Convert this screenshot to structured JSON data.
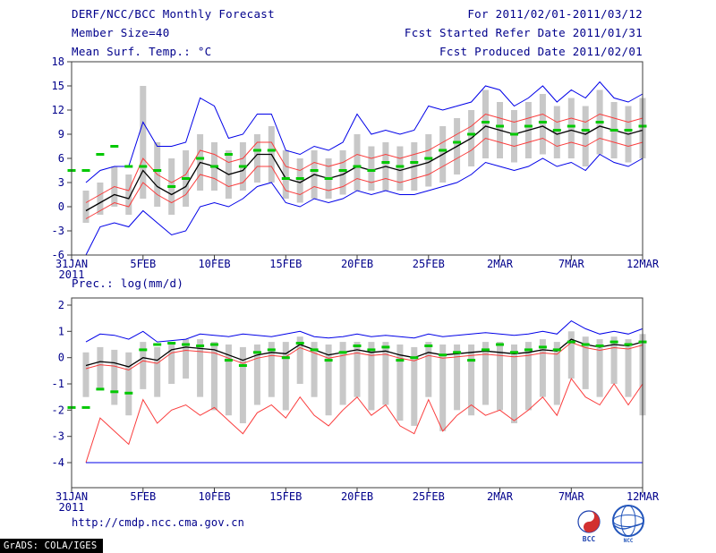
{
  "header": {
    "title": "DERF/NCC/BCC Monthly Forecast",
    "member_size": "Member Size=40",
    "for_line": "For 2011/02/01-2011/03/12",
    "refer_line": "Fcst Started Refer Date 2011/01/31",
    "produced_line": "Fcst Produced Date 2011/02/01"
  },
  "footer": {
    "url": "http://cmdp.ncc.cma.gov.cn",
    "grads_credit": "GrADS: COLA/IGES",
    "logos": [
      {
        "label": "BCC"
      },
      {
        "label": "NCC"
      }
    ]
  },
  "colors": {
    "text": "#00008b",
    "frame": "#3c3c3c",
    "bar": "#c8c8c8",
    "obs": "#00c800",
    "blue": "#0000e8",
    "red": "#fa3c3c",
    "black": "#000000"
  },
  "chart_data": [
    {
      "type": "line",
      "title": "Mean Surf. Temp.: °C",
      "ylabel": "",
      "ylim": [
        -6,
        18
      ],
      "ytick_step": 3,
      "grid": false,
      "legend": "none",
      "x_tick_days": [
        0,
        5,
        10,
        15,
        20,
        25,
        30,
        35,
        40
      ],
      "x_tick_labels": [
        "31JAN",
        "5FEB",
        "10FEB",
        "15FEB",
        "20FEB",
        "25FEB",
        "2MAR",
        "7MAR",
        "12MAR"
      ],
      "x_sub_label": "2011",
      "n_days": 41,
      "series": [
        {
          "name": "ensemble-max",
          "color_key": "blue",
          "width": 1,
          "values": [
            null,
            3,
            4.5,
            5,
            5,
            10.5,
            7.5,
            7.5,
            8,
            13.5,
            12.5,
            8.5,
            9,
            11.5,
            11.5,
            7,
            6.5,
            7.5,
            7,
            8,
            11.5,
            9,
            9.5,
            9,
            9.5,
            12.5,
            12,
            12.5,
            13,
            15,
            14.5,
            12.5,
            13.5,
            15,
            13,
            14.5,
            13.5,
            15.5,
            13.5,
            13,
            14
          ]
        },
        {
          "name": "upper-quartile",
          "color_key": "red",
          "width": 1,
          "values": [
            null,
            0.5,
            1.5,
            2.5,
            2,
            6,
            4,
            3,
            4,
            7,
            6.5,
            5.5,
            6,
            8,
            8,
            5,
            4.5,
            5.5,
            5,
            5.5,
            6.5,
            6,
            6.5,
            6,
            6.5,
            7,
            8,
            9,
            10,
            11.5,
            11,
            10.5,
            11,
            11.5,
            10.5,
            11,
            10.5,
            11.5,
            11,
            10.5,
            11
          ]
        },
        {
          "name": "ensemble-mean",
          "color_key": "black",
          "width": 1.3,
          "values": [
            null,
            -0.5,
            0.5,
            1.5,
            1,
            4.5,
            2.5,
            1.5,
            2.5,
            5.5,
            5,
            4,
            4.5,
            6.5,
            6.5,
            3.5,
            3,
            4,
            3.5,
            4,
            5,
            4.5,
            5,
            4.5,
            5,
            5.5,
            6.5,
            7.5,
            8.5,
            10,
            9.5,
            9,
            9.5,
            10,
            9,
            9.5,
            9,
            10,
            9.5,
            9,
            9.5
          ]
        },
        {
          "name": "lower-quartile",
          "color_key": "red",
          "width": 1,
          "values": [
            null,
            -1.5,
            -0.5,
            0.5,
            0,
            3,
            1.5,
            0.5,
            1.5,
            4,
            3.5,
            2.5,
            3,
            5,
            5,
            2,
            1.5,
            2.5,
            2,
            2.5,
            3.5,
            3,
            3.5,
            3,
            3.5,
            4,
            5,
            6,
            7,
            8.5,
            8,
            7.5,
            8,
            8.5,
            7.5,
            8,
            7.5,
            8.5,
            8,
            7.5,
            8
          ]
        },
        {
          "name": "ensemble-min",
          "color_key": "blue",
          "width": 1,
          "values": [
            null,
            -6,
            -2.5,
            -2,
            -2.5,
            -0.5,
            -2,
            -3.5,
            -3,
            0,
            0.5,
            0,
            1,
            2.5,
            3,
            0.5,
            0,
            1,
            0.5,
            1,
            2,
            1.5,
            2,
            1.5,
            1.5,
            2,
            2.5,
            3,
            4,
            5.5,
            5,
            4.5,
            5,
            6,
            5,
            5.5,
            4.5,
            6.5,
            5.5,
            5,
            6
          ]
        }
      ],
      "obs": {
        "name": "observation",
        "values": [
          4.5,
          4.5,
          6.5,
          7.5,
          5,
          5,
          4.5,
          2.5,
          3.5,
          6,
          5,
          6.5,
          5,
          7,
          7,
          3.5,
          3.5,
          4.5,
          3.5,
          4.5,
          5,
          4.5,
          5.5,
          5,
          5.5,
          6,
          7,
          8,
          9,
          10.5,
          10,
          9,
          10,
          10.5,
          9.5,
          10,
          9.5,
          10.5,
          9.5,
          9.5,
          10
        ]
      },
      "bars": {
        "name": "ensemble-spread",
        "ranges": [
          null,
          [
            -2,
            2
          ],
          [
            -1,
            3
          ],
          [
            0,
            5
          ],
          [
            -1,
            4
          ],
          [
            1,
            15
          ],
          [
            0,
            8
          ],
          [
            -1,
            6
          ],
          [
            0,
            7
          ],
          [
            2,
            9
          ],
          [
            2,
            8
          ],
          [
            1,
            7
          ],
          [
            2,
            8
          ],
          [
            3,
            9
          ],
          [
            3,
            10
          ],
          [
            1,
            7
          ],
          [
            0.5,
            6
          ],
          [
            1,
            7
          ],
          [
            1,
            6
          ],
          [
            1.5,
            7
          ],
          [
            2,
            9
          ],
          [
            2,
            7.5
          ],
          [
            2,
            8
          ],
          [
            2,
            7.5
          ],
          [
            2,
            8
          ],
          [
            2.5,
            9
          ],
          [
            3,
            10
          ],
          [
            4,
            11
          ],
          [
            5,
            12
          ],
          [
            6,
            14.5
          ],
          [
            6,
            13
          ],
          [
            5.5,
            12
          ],
          [
            6,
            13
          ],
          [
            6.5,
            14
          ],
          [
            6,
            12.5
          ],
          [
            6,
            13.5
          ],
          [
            5,
            12.5
          ],
          [
            6.5,
            14.5
          ],
          [
            6,
            13
          ],
          [
            5.5,
            12.5
          ],
          [
            6,
            13.5
          ]
        ]
      }
    },
    {
      "type": "line",
      "title": "Prec.: log(mm/d)",
      "ylabel": "",
      "ylim": [
        -4,
        2
      ],
      "ytick_step": 1,
      "grid": false,
      "legend": "none",
      "x_tick_days": [
        0,
        5,
        10,
        15,
        20,
        25,
        30,
        35,
        40
      ],
      "x_tick_labels": [
        "31JAN",
        "5FEB",
        "10FEB",
        "15FEB",
        "20FEB",
        "25FEB",
        "2MAR",
        "7MAR",
        "12MAR"
      ],
      "x_sub_label": "2011",
      "n_days": 41,
      "series": [
        {
          "name": "ensemble-max",
          "color_key": "blue",
          "width": 1,
          "values": [
            null,
            0.6,
            0.9,
            0.85,
            0.7,
            1,
            0.6,
            0.65,
            0.7,
            0.9,
            0.85,
            0.8,
            0.9,
            0.85,
            0.8,
            0.9,
            1,
            0.8,
            0.75,
            0.8,
            0.9,
            0.8,
            0.85,
            0.8,
            0.75,
            0.9,
            0.8,
            0.85,
            0.9,
            0.95,
            0.9,
            0.85,
            0.9,
            1,
            0.9,
            1.4,
            1.1,
            0.9,
            1,
            0.9,
            1.1
          ]
        },
        {
          "name": "ensemble-mean",
          "color_key": "black",
          "width": 1.3,
          "values": [
            null,
            -0.3,
            -0.15,
            -0.2,
            -0.35,
            0,
            -0.1,
            0.3,
            0.4,
            0.35,
            0.3,
            0.1,
            -0.1,
            0.1,
            0.2,
            0.15,
            0.5,
            0.3,
            0.1,
            0.2,
            0.3,
            0.2,
            0.25,
            0.1,
            0,
            0.2,
            0.1,
            0.15,
            0.2,
            0.25,
            0.2,
            0.15,
            0.2,
            0.3,
            0.25,
            0.7,
            0.5,
            0.4,
            0.5,
            0.45,
            0.6
          ]
        },
        {
          "name": "upper-quartile",
          "color_key": "red",
          "width": 1,
          "values": [
            null,
            -0.42,
            -0.27,
            -0.32,
            -0.47,
            -0.12,
            -0.22,
            0.18,
            0.28,
            0.23,
            0.18,
            -0.02,
            -0.22,
            -0.02,
            0.08,
            0.03,
            0.38,
            0.18,
            -0.02,
            0.08,
            0.18,
            0.08,
            0.13,
            -0.02,
            -0.12,
            0.08,
            -0.02,
            0.03,
            0.08,
            0.13,
            0.08,
            0.03,
            0.08,
            0.18,
            0.13,
            0.58,
            0.38,
            0.28,
            0.38,
            0.33,
            0.48
          ]
        },
        {
          "name": "lower-quartile",
          "color_key": "red",
          "width": 1,
          "values": [
            null,
            -4,
            -2.3,
            -2.8,
            -3.3,
            -1.6,
            -2.5,
            -2,
            -1.8,
            -2.2,
            -1.9,
            -2.4,
            -2.9,
            -2.1,
            -1.8,
            -2.3,
            -1.5,
            -2.2,
            -2.6,
            -2,
            -1.5,
            -2.2,
            -1.8,
            -2.6,
            -2.9,
            -1.6,
            -2.8,
            -2.2,
            -1.8,
            -2.2,
            -2,
            -2.4,
            -2,
            -1.5,
            -2.2,
            -0.8,
            -1.5,
            -1.8,
            -1,
            -1.8,
            -1
          ]
        },
        {
          "name": "ensemble-min",
          "color_key": "blue",
          "width": 1,
          "values": [
            null,
            -4,
            -4,
            -4,
            -4,
            -4,
            -4,
            -4,
            -4,
            -4,
            -4,
            -4,
            -4,
            -4,
            -4,
            -4,
            -4,
            -4,
            -4,
            -4,
            -4,
            -4,
            -4,
            -4,
            -4,
            -4,
            -4,
            -4,
            -4,
            -4,
            -4,
            -4,
            -4,
            -4,
            -4,
            -4,
            -4,
            -4,
            -4,
            -4,
            -4
          ]
        }
      ],
      "obs": {
        "name": "observation",
        "values": [
          -1.9,
          -1.9,
          -1.2,
          -1.3,
          -1.35,
          0.3,
          0.5,
          0.55,
          0.5,
          0.45,
          0.5,
          -0.1,
          -0.3,
          0.2,
          0.3,
          0,
          0.55,
          0.3,
          -0.1,
          0.2,
          0.45,
          0.3,
          0.4,
          -0.1,
          0,
          0.45,
          0.1,
          0.2,
          -0.1,
          0.3,
          0.5,
          0.2,
          0.3,
          0.4,
          0.3,
          0.6,
          0.5,
          0.45,
          0.6,
          0.5,
          0.6
        ]
      },
      "bars": {
        "name": "ensemble-spread",
        "ranges": [
          null,
          [
            -1.5,
            0.2
          ],
          [
            -1.2,
            0.4
          ],
          [
            -1.8,
            0.3
          ],
          [
            -2.2,
            0.2
          ],
          [
            -1.2,
            0.6
          ],
          [
            -1.5,
            0.4
          ],
          [
            -1,
            0.6
          ],
          [
            -0.8,
            0.7
          ],
          [
            -1.5,
            0.7
          ],
          [
            -2,
            0.6
          ],
          [
            -2.2,
            0.5
          ],
          [
            -2.5,
            0.4
          ],
          [
            -1.8,
            0.5
          ],
          [
            -1.5,
            0.6
          ],
          [
            -2,
            0.6
          ],
          [
            -1,
            0.8
          ],
          [
            -1.5,
            0.6
          ],
          [
            -2.2,
            0.5
          ],
          [
            -1.8,
            0.6
          ],
          [
            -1.5,
            0.6
          ],
          [
            -2,
            0.6
          ],
          [
            -1.8,
            0.6
          ],
          [
            -2.4,
            0.5
          ],
          [
            -2.6,
            0.4
          ],
          [
            -1.5,
            0.6
          ],
          [
            -2.8,
            0.5
          ],
          [
            -2,
            0.5
          ],
          [
            -2.2,
            0.5
          ],
          [
            -1.8,
            0.6
          ],
          [
            -2,
            0.6
          ],
          [
            -2.5,
            0.5
          ],
          [
            -2,
            0.6
          ],
          [
            -1.5,
            0.7
          ],
          [
            -1.8,
            0.6
          ],
          [
            -0.8,
            1
          ],
          [
            -1.2,
            0.8
          ],
          [
            -1.5,
            0.7
          ],
          [
            -1,
            0.8
          ],
          [
            -1.5,
            0.7
          ],
          [
            -2.2,
            0.9
          ]
        ]
      }
    }
  ]
}
